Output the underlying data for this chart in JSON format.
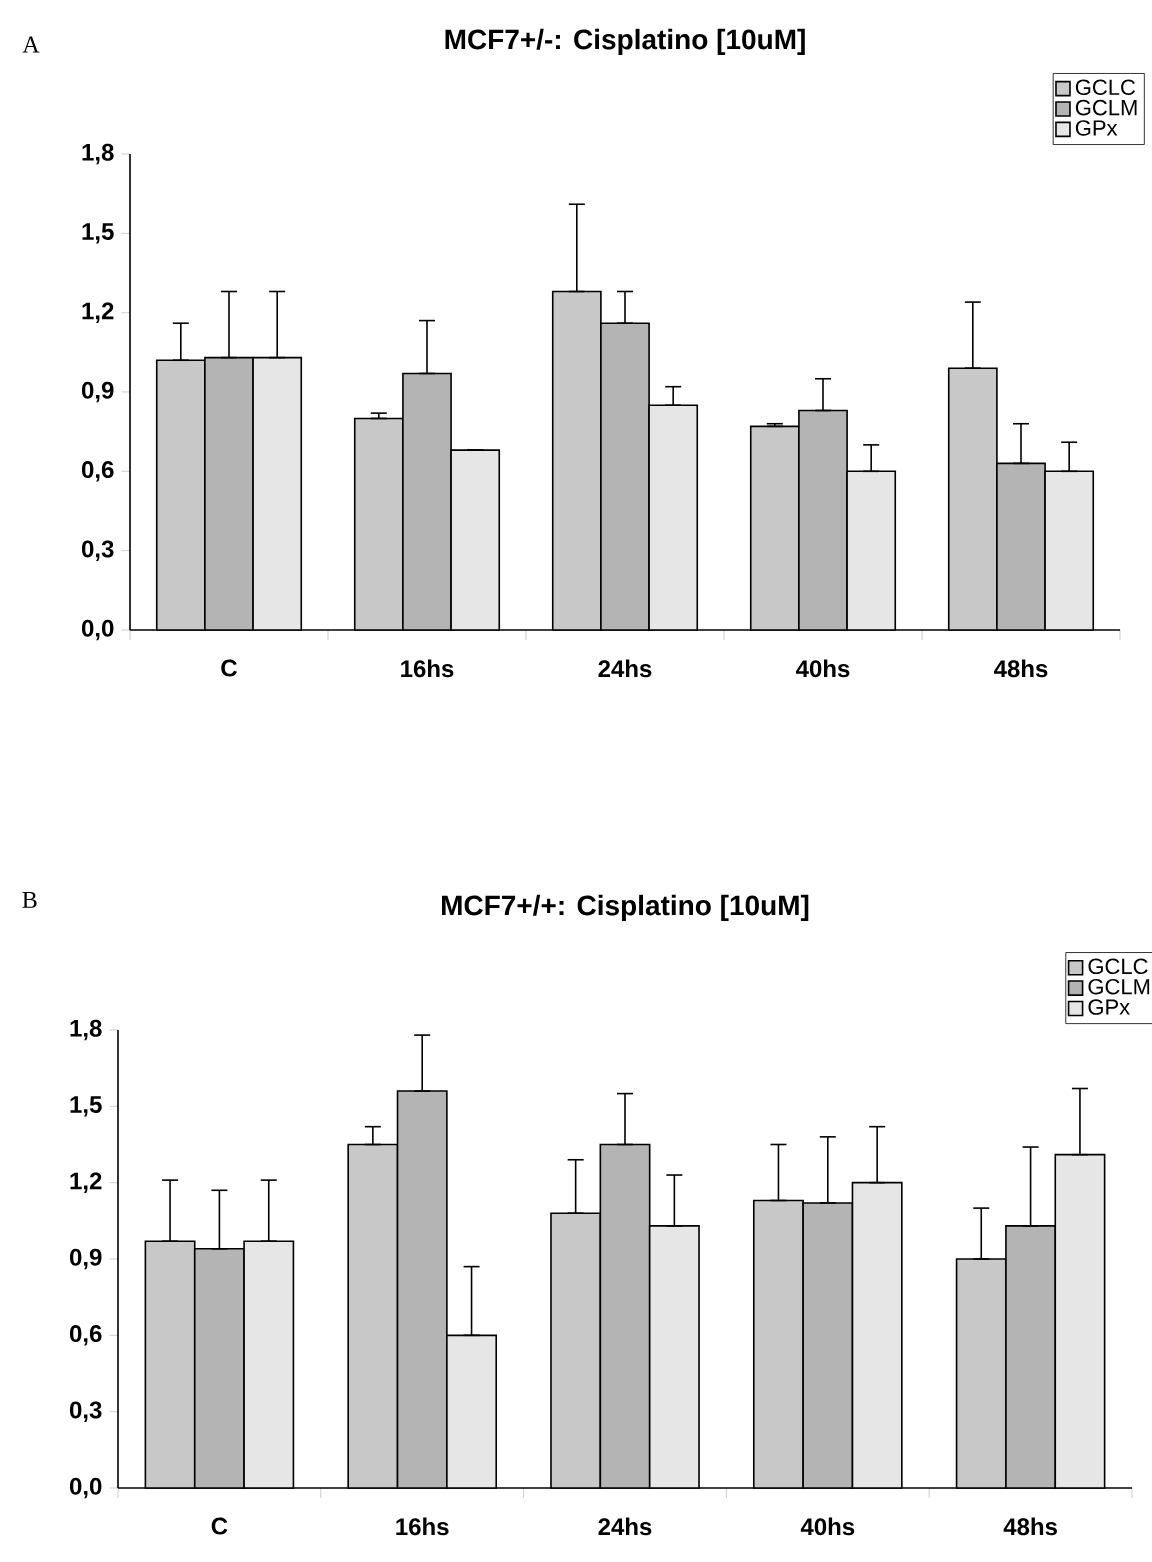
{
  "chart_data": [
    {
      "type": "bar",
      "title": "MCF7+/-: Cisplatino [10uM]",
      "annotations": [
        "A"
      ],
      "categories": [
        "C",
        "16hs",
        "24hs",
        "40hs",
        "48hs"
      ],
      "series": [
        {
          "name": "GCLC",
          "color": "#c8c8c8",
          "values": [
            1.02,
            0.8,
            1.28,
            0.77,
            0.99
          ],
          "errors": [
            [
              1.02,
              1.16
            ],
            [
              0.8,
              0.82
            ],
            [
              1.28,
              1.61
            ],
            [
              0.77,
              0.78
            ],
            [
              0.99,
              1.24
            ]
          ]
        },
        {
          "name": "GCLM",
          "color": "#b4b4b4",
          "values": [
            1.03,
            0.97,
            1.16,
            0.83,
            0.63
          ],
          "errors": [
            [
              1.03,
              1.28
            ],
            [
              0.97,
              1.17
            ],
            [
              1.16,
              1.28
            ],
            [
              0.83,
              0.95
            ],
            [
              0.63,
              0.78
            ]
          ]
        },
        {
          "name": "GPx",
          "color": "#e6e6e6",
          "values": [
            1.03,
            0.68,
            0.85,
            0.6,
            0.6
          ],
          "errors": [
            [
              1.03,
              1.28
            ],
            null,
            [
              0.85,
              0.92
            ],
            [
              0.6,
              0.7
            ],
            [
              0.6,
              0.71
            ]
          ]
        }
      ],
      "ylim": [
        0,
        1.8
      ],
      "yticks": [
        {
          "value": 0,
          "label": "0,0"
        },
        {
          "value": 0.3,
          "label": "0,3"
        },
        {
          "value": 0.6,
          "label": "0,6"
        },
        {
          "value": 0.9,
          "label": "0,9"
        },
        {
          "value": 1.2,
          "label": "1,2"
        },
        {
          "value": 1.5,
          "label": "1,5"
        },
        {
          "value": 1.8,
          "label": "1,8"
        }
      ],
      "legend": "top right"
    },
    {
      "type": "bar",
      "title": "MCF7+/+: Cisplatino [10uM]",
      "annotations": [
        "B"
      ],
      "categories": [
        "C",
        "16hs",
        "24hs",
        "40hs",
        "48hs"
      ],
      "series": [
        {
          "name": "GCLC",
          "color": "#c8c8c8",
          "values": [
            0.97,
            1.35,
            1.08,
            1.13,
            0.9
          ],
          "errors": [
            [
              0.97,
              1.21
            ],
            [
              1.35,
              1.42
            ],
            [
              1.08,
              1.29
            ],
            [
              1.13,
              1.35
            ],
            [
              0.9,
              1.1
            ]
          ]
        },
        {
          "name": "GCLM",
          "color": "#b4b4b4",
          "values": [
            0.94,
            1.56,
            1.35,
            1.12,
            1.03
          ],
          "errors": [
            [
              0.94,
              1.17
            ],
            [
              1.56,
              1.78
            ],
            [
              1.35,
              1.55
            ],
            [
              1.12,
              1.38
            ],
            [
              1.03,
              1.34
            ]
          ]
        },
        {
          "name": "GPx",
          "color": "#e6e6e6",
          "values": [
            0.97,
            0.6,
            1.03,
            1.2,
            1.31
          ],
          "errors": [
            [
              0.97,
              1.21
            ],
            [
              0.6,
              0.87
            ],
            [
              1.03,
              1.23
            ],
            [
              1.2,
              1.42
            ],
            [
              1.31,
              1.57
            ]
          ]
        }
      ],
      "ylim": [
        0,
        1.8
      ],
      "yticks": [
        {
          "value": 0,
          "label": "0,0"
        },
        {
          "value": 0.3,
          "label": "0,3"
        },
        {
          "value": 0.6,
          "label": "0,6"
        },
        {
          "value": 0.9,
          "label": "0,9"
        },
        {
          "value": 1.2,
          "label": "1,2"
        },
        {
          "value": 1.5,
          "label": "1,5"
        },
        {
          "value": 1.8,
          "label": "1,8"
        }
      ],
      "legend": "top right"
    }
  ]
}
